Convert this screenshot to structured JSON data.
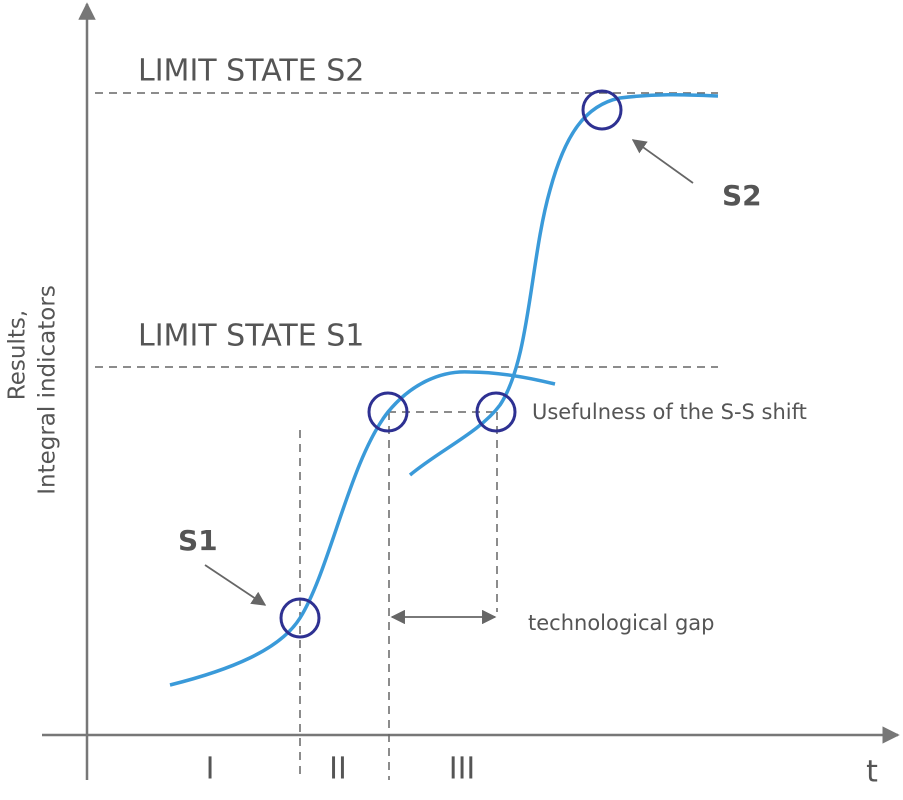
{
  "limit_states": [
    {
      "label": "LIMIT STATE S2"
    },
    {
      "label": "LIMIT STATE S1"
    }
  ],
  "points": [
    {
      "label": "S1"
    },
    {
      "label": "S2"
    }
  ],
  "annotations": {
    "shift": "Usefulness of the S-S shift",
    "gap": "technological gap"
  },
  "axes": {
    "y_label": [
      "Results,",
      "Integral indicators"
    ],
    "x_label": "t"
  },
  "regions": [
    "I",
    "II",
    "III"
  ]
}
